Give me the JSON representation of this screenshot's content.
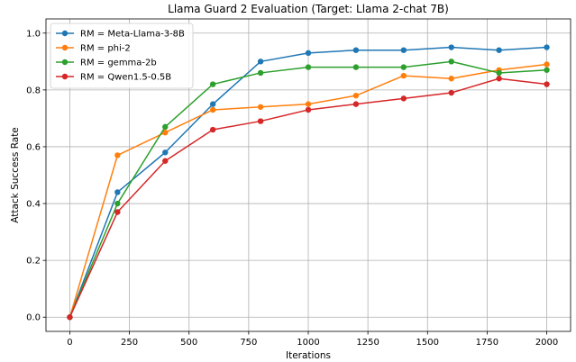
{
  "chart_data": {
    "type": "line",
    "title": "Llama Guard 2 Evaluation (Target: Llama 2-chat 7B)",
    "xlabel": "Iterations",
    "ylabel": "Attack Success Rate",
    "x": [
      0,
      200,
      400,
      600,
      800,
      1000,
      1200,
      1400,
      1600,
      1800,
      2000
    ],
    "xlim": [
      -100,
      2100
    ],
    "ylim": [
      -0.05,
      1.05
    ],
    "xticks": [
      0,
      250,
      500,
      750,
      1000,
      1250,
      1500,
      1750,
      2000
    ],
    "yticks": [
      0.0,
      0.2,
      0.4,
      0.6,
      0.8,
      1.0
    ],
    "xtick_labels": [
      "0",
      "250",
      "500",
      "750",
      "1000",
      "1250",
      "1500",
      "1750",
      "2000"
    ],
    "ytick_labels": [
      "0.0",
      "0.2",
      "0.4",
      "0.6",
      "0.8",
      "1.0"
    ],
    "grid": true,
    "legend_position": "top-left",
    "series": [
      {
        "name": "RM = Meta-Llama-3-8B",
        "color": "#1f77b4",
        "values": [
          0.0,
          0.44,
          0.58,
          0.75,
          0.9,
          0.93,
          0.94,
          0.94,
          0.95,
          0.94,
          0.95
        ]
      },
      {
        "name": "RM = phi-2",
        "color": "#ff7f0e",
        "values": [
          0.0,
          0.57,
          0.65,
          0.73,
          0.74,
          0.75,
          0.78,
          0.85,
          0.84,
          0.87,
          0.89
        ]
      },
      {
        "name": "RM = gemma-2b",
        "color": "#2ca02c",
        "values": [
          0.0,
          0.4,
          0.67,
          0.82,
          0.86,
          0.88,
          0.88,
          0.88,
          0.9,
          0.86,
          0.87
        ]
      },
      {
        "name": "RM = Qwen1.5-0.5B",
        "color": "#d62728",
        "values": [
          0.0,
          0.37,
          0.55,
          0.66,
          0.69,
          0.73,
          0.75,
          0.77,
          0.79,
          0.84,
          0.82
        ]
      }
    ]
  }
}
